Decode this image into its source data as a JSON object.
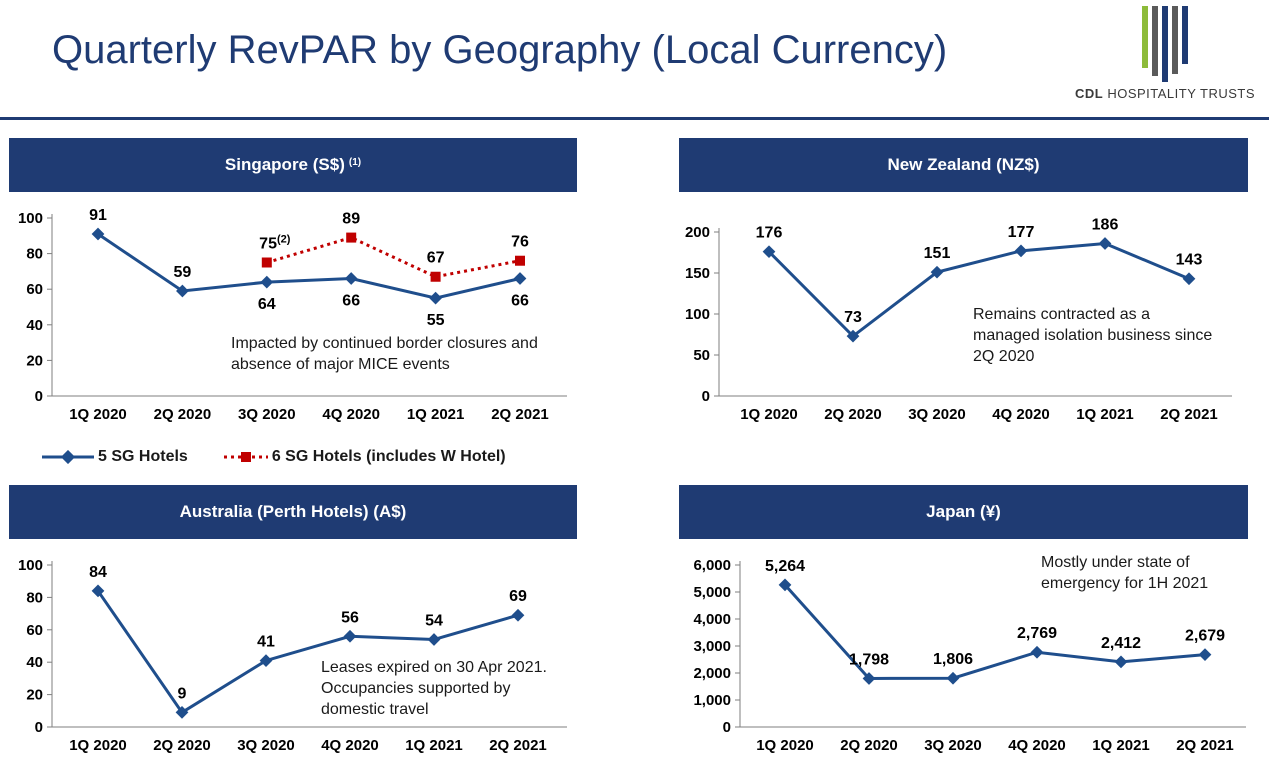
{
  "title": "Quarterly RevPAR by Geography (Local Currency)",
  "logo": {
    "text_bold": "CDL",
    "text_rest": "HOSPITALITY TRUSTS"
  },
  "colors": {
    "navy": "#1f3b73",
    "series_blue": "#1f4e8c",
    "series_red": "#c00000"
  },
  "panels": {
    "singapore": {
      "header": "Singapore (S$)",
      "header_note": "(1)",
      "note": "Impacted by continued border closures and absence of major MICE events"
    },
    "new_zealand": {
      "header": "New Zealand (NZ$)",
      "note": "Remains contracted as a managed isolation business since 2Q 2020"
    },
    "australia": {
      "header": "Australia (Perth Hotels) (A$)",
      "note": "Leases expired on 30 Apr 2021. Occupancies supported by domestic travel"
    },
    "japan": {
      "header": "Japan (¥)",
      "note": "Mostly under state of emergency for 1H 2021"
    }
  },
  "legend": {
    "series1": "5 SG Hotels",
    "series2": "6 SG Hotels (includes W Hotel)"
  },
  "chart_data": [
    {
      "id": "singapore",
      "type": "line",
      "title": "Singapore (S$)",
      "categories": [
        "1Q 2020",
        "2Q 2020",
        "3Q 2020",
        "4Q 2020",
        "1Q 2021",
        "2Q 2021"
      ],
      "ylim": [
        0,
        100
      ],
      "yticks": [
        0,
        20,
        40,
        60,
        80,
        100
      ],
      "ytick_labels": [
        "0",
        "20",
        "40",
        "60",
        "80",
        "100"
      ],
      "series": [
        {
          "name": "5 SG Hotels",
          "values": [
            91,
            59,
            64,
            66,
            55,
            66
          ],
          "labels": [
            "91",
            "59",
            "64",
            "66",
            "55",
            "66"
          ],
          "label_pos": [
            "above",
            "above",
            "below",
            "below",
            "below",
            "below"
          ]
        },
        {
          "name": "6 SG Hotels (includes W Hotel)",
          "values": [
            null,
            null,
            75,
            89,
            67,
            76
          ],
          "labels": [
            null,
            null,
            "75",
            "89",
            "67",
            "76"
          ],
          "label_pos": [
            null,
            null,
            "above",
            "above",
            "above",
            "above"
          ],
          "label_sup": [
            null,
            null,
            "(2)",
            null,
            null,
            null
          ]
        }
      ]
    },
    {
      "id": "new_zealand",
      "type": "line",
      "title": "New Zealand (NZ$)",
      "categories": [
        "1Q 2020",
        "2Q 2020",
        "3Q 2020",
        "4Q 2020",
        "1Q 2021",
        "2Q 2021"
      ],
      "ylim": [
        0,
        200
      ],
      "yticks": [
        0,
        50,
        100,
        150,
        200
      ],
      "ytick_labels": [
        "0",
        "50",
        "100",
        "150",
        "200"
      ],
      "series": [
        {
          "name": "RevPAR",
          "values": [
            176,
            73,
            151,
            177,
            186,
            143
          ],
          "labels": [
            "176",
            "73",
            "151",
            "177",
            "186",
            "143"
          ],
          "label_pos": [
            "above",
            "above",
            "above",
            "above",
            "above",
            "above"
          ]
        }
      ]
    },
    {
      "id": "australia",
      "type": "line",
      "title": "Australia (Perth Hotels) (A$)",
      "categories": [
        "1Q 2020",
        "2Q 2020",
        "3Q 2020",
        "4Q 2020",
        "1Q 2021",
        "2Q 2021"
      ],
      "ylim": [
        0,
        100
      ],
      "yticks": [
        0,
        20,
        40,
        60,
        80,
        100
      ],
      "ytick_labels": [
        "0",
        "20",
        "40",
        "60",
        "80",
        "100"
      ],
      "series": [
        {
          "name": "RevPAR",
          "values": [
            84,
            9,
            41,
            56,
            54,
            69
          ],
          "labels": [
            "84",
            "9",
            "41",
            "56",
            "54",
            "69"
          ],
          "label_pos": [
            "above",
            "above",
            "above",
            "above",
            "above",
            "above"
          ]
        }
      ]
    },
    {
      "id": "japan",
      "type": "line",
      "title": "Japan (¥)",
      "categories": [
        "1Q 2020",
        "2Q 2020",
        "3Q 2020",
        "4Q 2020",
        "1Q 2021",
        "2Q 2021"
      ],
      "ylim": [
        0,
        6000
      ],
      "yticks": [
        0,
        1000,
        2000,
        3000,
        4000,
        5000,
        6000
      ],
      "ytick_labels": [
        "0",
        "1,000",
        "2,000",
        "3,000",
        "4,000",
        "5,000",
        "6,000"
      ],
      "series": [
        {
          "name": "RevPAR",
          "values": [
            5264,
            1798,
            1806,
            2769,
            2412,
            2679
          ],
          "labels": [
            "5,264",
            "1,798",
            "1,806",
            "2,769",
            "2,412",
            "2,679"
          ],
          "label_pos": [
            "above",
            "above",
            "above",
            "above",
            "above",
            "above"
          ]
        }
      ]
    }
  ]
}
